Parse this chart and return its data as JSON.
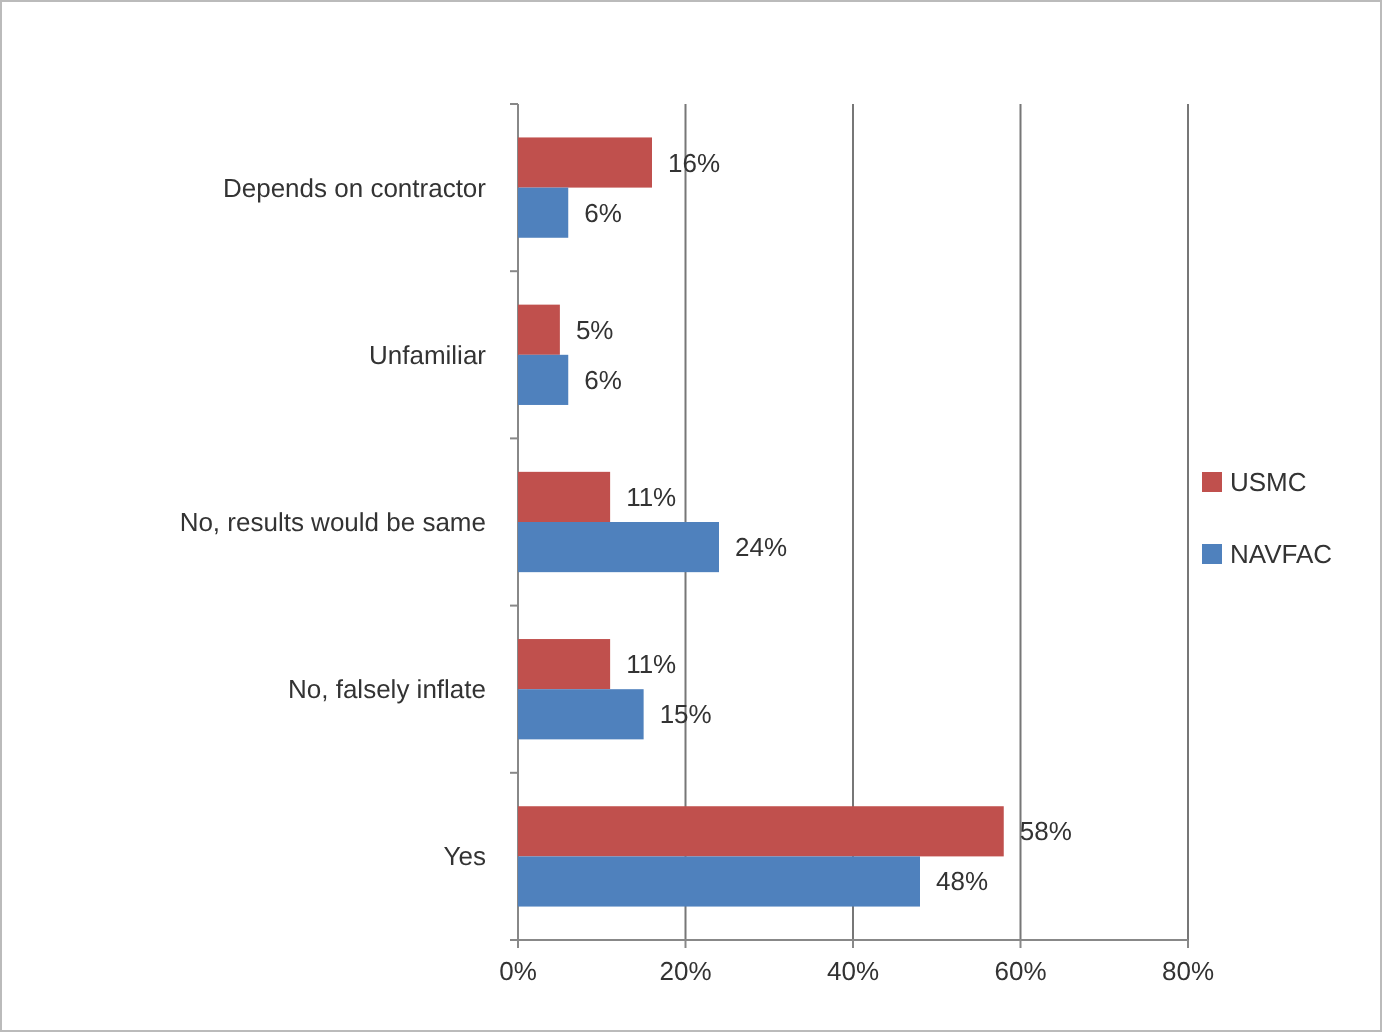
{
  "chart_data": {
    "type": "bar",
    "orientation": "horizontal",
    "categories": [
      "Depends on contractor",
      "Unfamiliar",
      "No, results would be same",
      "No, falsely inflate",
      "Yes"
    ],
    "series": [
      {
        "name": "USMC",
        "color": "#c0504d",
        "values": [
          16,
          5,
          11,
          11,
          58
        ],
        "value_labels": [
          "16%",
          "5%",
          "11%",
          "11%",
          "58%"
        ]
      },
      {
        "name": "NAVFAC",
        "color": "#4f81bd",
        "values": [
          6,
          6,
          24,
          15,
          48
        ],
        "value_labels": [
          "6%",
          "6%",
          "24%",
          "15%",
          "48%"
        ]
      }
    ],
    "xlim": [
      0,
      80
    ],
    "xticks": [
      {
        "value": 0,
        "label": "0%"
      },
      {
        "value": 20,
        "label": "20%"
      },
      {
        "value": 40,
        "label": "40%"
      },
      {
        "value": 60,
        "label": "60%"
      },
      {
        "value": 80,
        "label": "80%"
      }
    ],
    "grid": "x",
    "legend": "right"
  }
}
